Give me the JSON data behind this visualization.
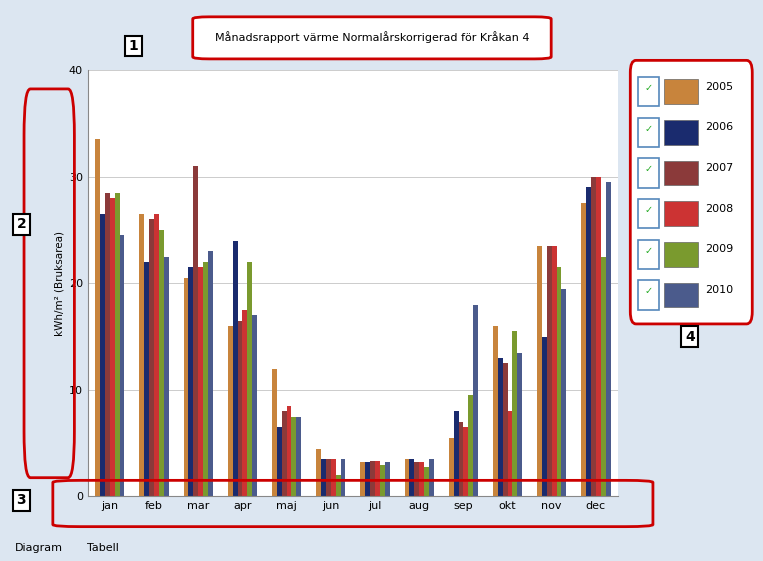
{
  "title": "Månadsrapport värme Normalårskorrigerad för Kråkan 4",
  "ylabel": "kWh/m² (Bruksarea)",
  "months": [
    "jan",
    "feb",
    "mar",
    "apr",
    "maj",
    "jun",
    "jul",
    "aug",
    "sep",
    "okt",
    "nov",
    "dec"
  ],
  "years": [
    "2005",
    "2006",
    "2007",
    "2008",
    "2009",
    "2010"
  ],
  "colors": [
    "#C8843C",
    "#1A2B6E",
    "#8B3A3A",
    "#CC3333",
    "#7A9A2E",
    "#4B5B8C"
  ],
  "ylim": [
    0,
    40
  ],
  "yticks": [
    0,
    10,
    20,
    30,
    40
  ],
  "data": {
    "2005": [
      33.5,
      26.5,
      20.5,
      16.0,
      12.0,
      4.5,
      3.2,
      3.5,
      5.5,
      16.0,
      23.5,
      27.5
    ],
    "2006": [
      26.5,
      22.0,
      21.5,
      24.0,
      6.5,
      3.5,
      3.2,
      3.5,
      8.0,
      13.0,
      15.0,
      29.0
    ],
    "2007": [
      28.5,
      26.0,
      31.0,
      16.5,
      8.0,
      3.5,
      3.3,
      3.2,
      7.0,
      12.5,
      23.5,
      30.0
    ],
    "2008": [
      28.0,
      26.5,
      21.5,
      17.5,
      8.5,
      3.5,
      3.3,
      3.2,
      6.5,
      8.0,
      23.5,
      30.0
    ],
    "2009": [
      28.5,
      25.0,
      22.0,
      22.0,
      7.5,
      2.0,
      3.0,
      2.8,
      9.5,
      15.5,
      21.5,
      22.5
    ],
    "2010": [
      24.5,
      22.5,
      23.0,
      17.0,
      7.5,
      3.5,
      3.2,
      3.5,
      18.0,
      13.5,
      19.5,
      29.5
    ]
  },
  "bg_color": "#DCE6F1",
  "plot_bg_color": "#FFFFFF",
  "tab1_text": "Diagram",
  "tab2_text": "Tabell"
}
